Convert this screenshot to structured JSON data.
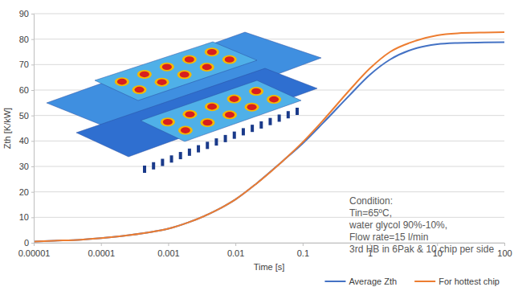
{
  "chart_data": {
    "type": "line",
    "y_label": "Zth [K/kW]",
    "x_label": "Time [s]",
    "annotations": [
      "Condition:",
      "Tin=65ºC,",
      "water glycol 90%-10%,",
      "Flow rate=15 l/min",
      "3rd HB in 6Pak & 10 chip per side"
    ],
    "log": "x",
    "grid": true,
    "legend": "bottom",
    "x": [
      1e-05,
      2e-05,
      5e-05,
      0.0001,
      0.0002,
      0.0005,
      0.001,
      0.002,
      0.005,
      0.01,
      0.02,
      0.05,
      0.1,
      0.2,
      0.5,
      1,
      2,
      5,
      10,
      20,
      50,
      100
    ],
    "series": [
      {
        "name": "Average Zth",
        "color": "#4472c4",
        "values": [
          0.5,
          0.8,
          1.2,
          1.8,
          2.6,
          4.0,
          5.5,
          8.0,
          12.5,
          17,
          23,
          32,
          39,
          47,
          58,
          66,
          72,
          76.5,
          78,
          78.5,
          78.7,
          78.8
        ]
      },
      {
        "name": "For hottest chip",
        "color": "#ed7d31",
        "values": [
          0.5,
          0.8,
          1.2,
          1.8,
          2.6,
          4.0,
          5.5,
          8.0,
          12.5,
          17,
          23,
          32,
          39.5,
          48,
          60,
          68.5,
          75,
          79.5,
          81.5,
          82.3,
          82.6,
          82.7
        ]
      }
    ],
    "xlim": [
      1e-05,
      100
    ],
    "xticks": [
      1e-05,
      0.0001,
      0.001,
      0.01,
      0.1,
      1,
      10,
      100
    ],
    "ylim": [
      0,
      90
    ],
    "yticks": [
      0,
      10,
      20,
      30,
      40,
      50,
      60,
      70,
      80,
      90
    ]
  }
}
